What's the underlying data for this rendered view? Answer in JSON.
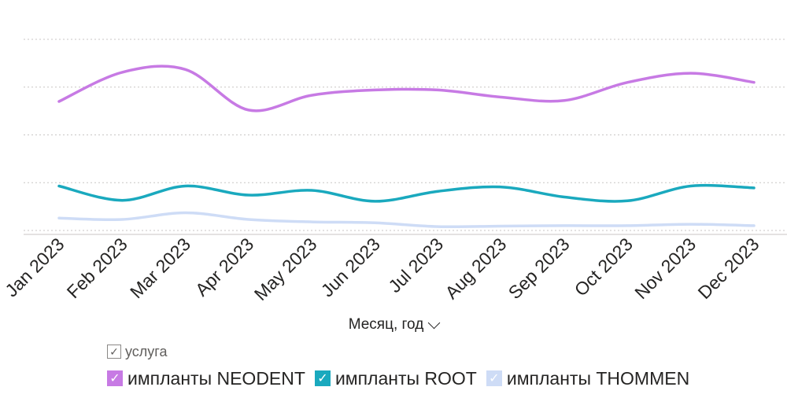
{
  "chart_data": {
    "type": "line",
    "categories": [
      "Jan 2023",
      "Feb 2023",
      "Mar 2023",
      "Apr 2023",
      "May 2023",
      "Jun 2023",
      "Jul 2023",
      "Aug 2023",
      "Sep 2023",
      "Oct 2023",
      "Nov 2023",
      "Dec 2023"
    ],
    "xlabel": "Месяц, год",
    "ylim": [
      0,
      4
    ],
    "grid": true,
    "legend_title": "услуга",
    "legend_position": "bottom",
    "series": [
      {
        "name": "импланты NEODENT",
        "color": "#c77ae4",
        "values": [
          2.7,
          3.31,
          3.37,
          2.52,
          2.83,
          2.94,
          2.94,
          2.79,
          2.72,
          3.1,
          3.29,
          3.1
        ]
      },
      {
        "name": "импланты ROOT",
        "color": "#1aa9be",
        "values": [
          0.93,
          0.63,
          0.93,
          0.74,
          0.84,
          0.61,
          0.82,
          0.91,
          0.7,
          0.62,
          0.93,
          0.89
        ]
      },
      {
        "name": "импланты THOMMEN",
        "color": "#cedcf6",
        "values": [
          0.26,
          0.23,
          0.37,
          0.23,
          0.18,
          0.16,
          0.08,
          0.09,
          0.1,
          0.1,
          0.13,
          0.1
        ]
      }
    ]
  }
}
